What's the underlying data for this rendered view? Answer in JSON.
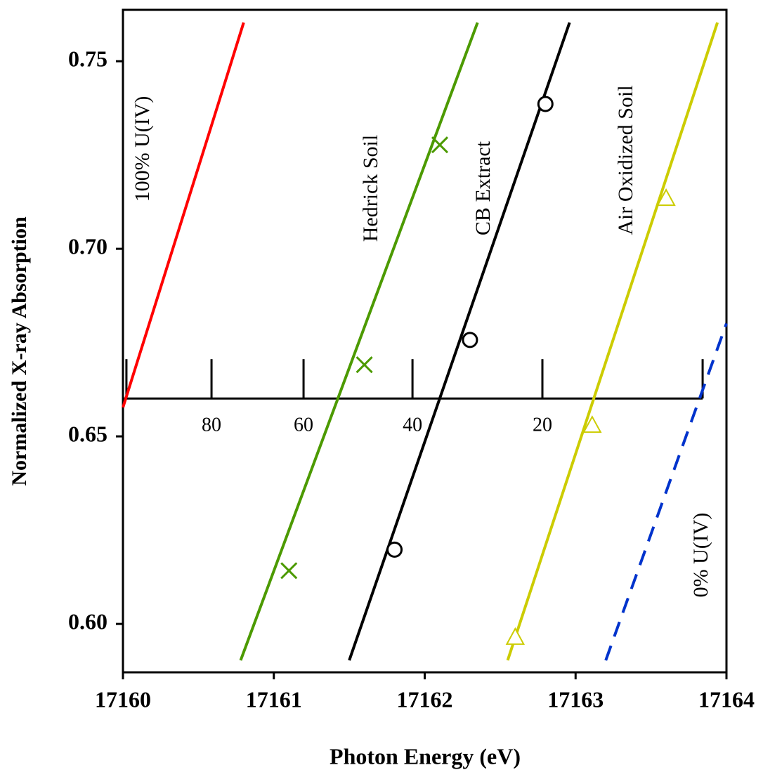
{
  "chart_data": {
    "type": "line",
    "x_label": "Photon Energy (eV)",
    "y_label": "Normalized X-ray Absorption",
    "xlim": [
      17160,
      17164
    ],
    "ylim": [
      0.5871,
      0.7637
    ],
    "xticks": [
      17160,
      17161,
      17162,
      17163,
      17164
    ],
    "yticks": [
      {
        "value": 0.6,
        "label": "0.60"
      },
      {
        "value": 0.65,
        "label": "0.65"
      },
      {
        "value": 0.7,
        "label": "0.70"
      },
      {
        "value": 0.75,
        "label": "0.75"
      }
    ],
    "series": [
      {
        "name": "100% U(IV)",
        "color": "#ff0000",
        "dash": false,
        "x": [
          17160,
          17160.57,
          17160.8
        ],
        "values": [
          0.6577,
          0.7307,
          0.7603
        ]
      },
      {
        "name": "Hedrick Soil",
        "color": "#4c9a00",
        "dash": false,
        "marker": "x",
        "x": [
          17160.78,
          17162.35
        ],
        "values": [
          0.5903,
          0.7603
        ],
        "markers": {
          "x": [
            17161.1,
            17161.6,
            17162.1
          ],
          "values": [
            0.6142,
            0.6691,
            0.7277
          ]
        }
      },
      {
        "name": "CB Extract",
        "color": "#000000",
        "dash": false,
        "marker": "circle",
        "x": [
          17161.5,
          17162.96
        ],
        "values": [
          0.5903,
          0.7603
        ],
        "markers": {
          "x": [
            17161.8,
            17162.3,
            17162.8
          ],
          "values": [
            0.6198,
            0.6757,
            0.7386
          ]
        }
      },
      {
        "name": "Air Oxidized Soil",
        "color": "#cccc00",
        "dash": false,
        "marker": "triangle",
        "x": [
          17162.55,
          17163.94
        ],
        "values": [
          0.5903,
          0.7603
        ],
        "markers": {
          "x": [
            17162.6,
            17163.11,
            17163.6
          ],
          "values": [
            0.5963,
            0.6528,
            0.7133
          ]
        }
      },
      {
        "name": "0% U(IV)",
        "color": "#0033cc",
        "dash": true,
        "x": [
          17163.2,
          17164
        ],
        "values": [
          0.5903,
          0.6801
        ]
      }
    ],
    "inset_axis": {
      "at": 0.6601,
      "xrange": [
        17160,
        17163.842
      ],
      "ticks": [
        17160.023,
        {
          "value": 17160.587,
          "label": "80"
        },
        {
          "value": 17161.197,
          "label": "60"
        },
        {
          "value": 17161.919,
          "label": "40"
        },
        {
          "value": 17162.78,
          "label": "20"
        },
        17163.842
      ]
    }
  }
}
